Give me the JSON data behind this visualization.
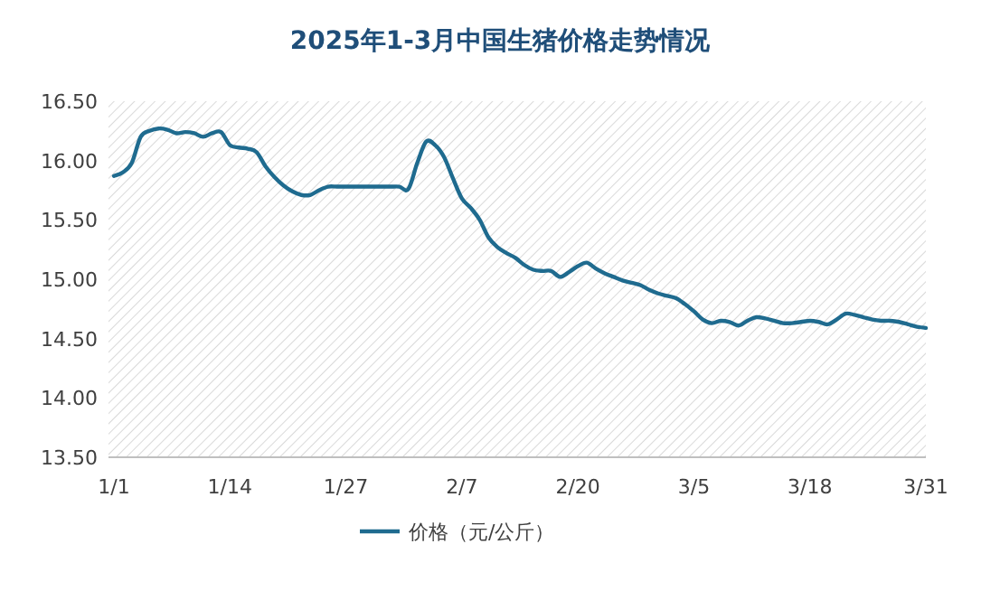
{
  "chart_data": {
    "type": "line",
    "title": "2025年1-3月中国生猪价格走势情况",
    "categories": [
      "1/1",
      null,
      null,
      null,
      null,
      null,
      null,
      null,
      null,
      null,
      null,
      null,
      null,
      "1/14",
      null,
      null,
      null,
      null,
      null,
      null,
      null,
      null,
      null,
      null,
      null,
      null,
      "1/27",
      null,
      null,
      null,
      null,
      null,
      null,
      null,
      null,
      null,
      null,
      null,
      null,
      "2/7",
      null,
      null,
      null,
      null,
      null,
      null,
      null,
      null,
      null,
      null,
      null,
      null,
      "2/20",
      null,
      null,
      null,
      null,
      null,
      null,
      null,
      null,
      null,
      null,
      null,
      null,
      "3/5",
      null,
      null,
      null,
      null,
      null,
      null,
      null,
      null,
      null,
      null,
      null,
      null,
      "3/18",
      null,
      null,
      null,
      null,
      null,
      null,
      null,
      null,
      null,
      null,
      null,
      null,
      "3/31"
    ],
    "series": [
      {
        "name": "价格（元/公斤）",
        "color": "#1f6b8f",
        "values": [
          15.87,
          15.9,
          15.98,
          16.2,
          16.25,
          16.27,
          16.26,
          16.23,
          16.24,
          16.23,
          16.2,
          16.23,
          16.24,
          16.13,
          16.11,
          16.1,
          16.07,
          15.95,
          15.86,
          15.79,
          15.74,
          15.71,
          15.71,
          15.75,
          15.78,
          15.78,
          15.78,
          15.78,
          15.78,
          15.78,
          15.78,
          15.78,
          15.78,
          15.76,
          15.98,
          16.16,
          16.13,
          16.03,
          15.85,
          15.68,
          15.6,
          15.5,
          15.35,
          15.27,
          15.22,
          15.18,
          15.12,
          15.08,
          15.07,
          15.07,
          15.02,
          15.06,
          15.11,
          15.14,
          15.09,
          15.05,
          15.02,
          14.99,
          14.97,
          14.95,
          14.91,
          14.88,
          14.86,
          14.84,
          14.79,
          14.73,
          14.66,
          14.63,
          14.65,
          14.64,
          14.61,
          14.65,
          14.68,
          14.67,
          14.65,
          14.63,
          14.63,
          14.64,
          14.65,
          14.64,
          14.62,
          14.66,
          14.71,
          14.7,
          14.68,
          14.66,
          14.65,
          14.65,
          14.64,
          14.62,
          14.6,
          14.59
        ]
      }
    ],
    "ylim": [
      13.5,
      16.5
    ],
    "yticks": [
      {
        "value": 13.5,
        "label": "13.50"
      },
      {
        "value": 14,
        "label": "14.00"
      },
      {
        "value": 14.5,
        "label": "14.50"
      },
      {
        "value": 15,
        "label": "15.00"
      },
      {
        "value": 15.5,
        "label": "15.50"
      },
      {
        "value": 16,
        "label": "16.00"
      },
      {
        "value": 16.5,
        "label": "16.50"
      }
    ],
    "legend": "bottom",
    "marker": "none",
    "line_style": "solid",
    "grid": false
  }
}
